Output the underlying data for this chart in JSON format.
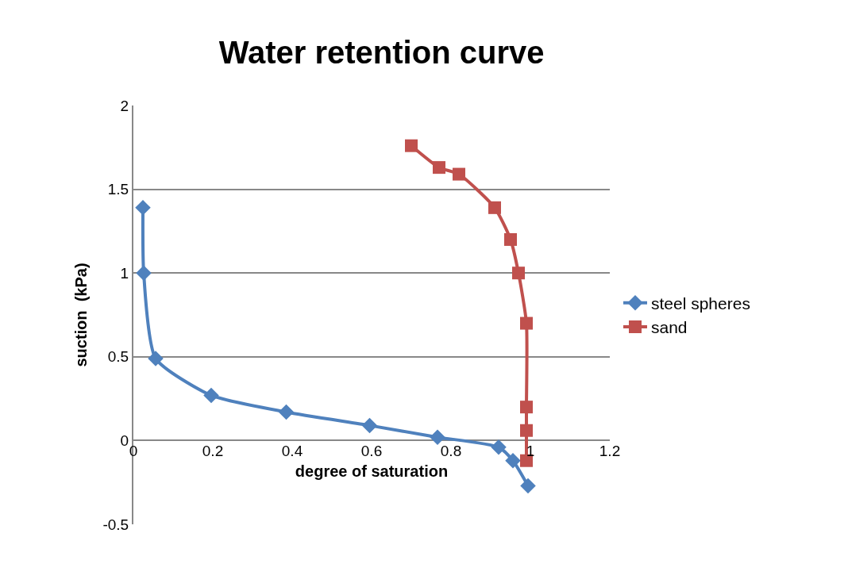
{
  "chart_data": {
    "type": "line",
    "title": "Water retention curve",
    "xlabel": "degree of saturation",
    "ylabel": "suction  (kPa)",
    "xlim": [
      0,
      1.2
    ],
    "xticks": [
      0,
      0.2,
      0.4,
      0.6,
      0.8,
      1,
      1.2
    ],
    "ylim": [
      -0.5,
      2
    ],
    "yticks": [
      -0.5,
      0,
      0.5,
      1,
      1.5,
      2
    ],
    "grid": "y",
    "legend": "right",
    "line_style": "solid",
    "series": [
      {
        "name": "steel spheres",
        "color": "#4f81bd",
        "marker": "diamond",
        "x": [
          0.024,
          0.026,
          0.056,
          0.196,
          0.385,
          0.595,
          0.766,
          0.92,
          0.956,
          0.994
        ],
        "values": [
          1.39,
          1.0,
          0.49,
          0.27,
          0.17,
          0.09,
          0.02,
          -0.04,
          -0.12,
          -0.27
        ]
      },
      {
        "name": "sand",
        "color": "#c0504d",
        "marker": "square",
        "x": [
          0.7,
          0.77,
          0.82,
          0.91,
          0.95,
          0.97,
          0.99,
          0.99,
          0.99,
          0.99
        ],
        "values": [
          1.76,
          1.63,
          1.59,
          1.39,
          1.2,
          1.0,
          0.7,
          0.2,
          0.06,
          -0.12
        ]
      }
    ]
  }
}
